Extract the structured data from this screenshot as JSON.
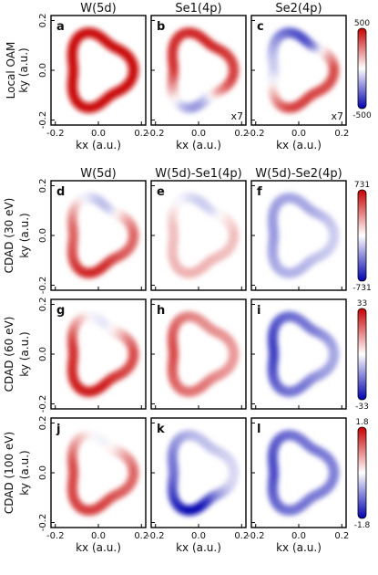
{
  "chart_data": {
    "type": "heatmap",
    "colormap": [
      "#0000b0",
      "#ffffff",
      "#c80000"
    ],
    "xticks": [
      "-0.2",
      "0.0",
      "0.2"
    ],
    "yticks": [
      "0.2",
      "0.0",
      "-0.2"
    ],
    "xlabel": "kx (a.u.)",
    "ylabel": "ky (a.u.)",
    "xlim": [
      -0.2,
      0.2
    ],
    "ylim": [
      -0.2,
      0.2
    ],
    "groups": [
      {
        "row_label": "Local OAM",
        "columns": [
          "W(5d)",
          "Se1(4p)",
          "Se2(4p)"
        ],
        "cbar_ticks": [
          "500",
          "-500"
        ],
        "panels": [
          {
            "letter": "a",
            "scale_label": "",
            "top": 0.95,
            "left": 0.95,
            "right": 0.95,
            "bottom": 0.95
          },
          {
            "letter": "b",
            "scale_label": "x7",
            "top": 0.85,
            "left": 0.8,
            "right": 0.75,
            "bottom": -0.4
          },
          {
            "letter": "c",
            "scale_label": "x7",
            "top": -0.7,
            "left": -0.2,
            "right": 0.7,
            "bottom": 0.75
          }
        ]
      },
      {
        "row_label": "CDAD (30 eV)",
        "columns": [
          "W(5d)",
          "W(5d)-Se1(4p)",
          "W(5d)-Se2(4p)"
        ],
        "cbar_ticks": [
          "731",
          "-731"
        ],
        "panels": [
          {
            "letter": "d",
            "scale_label": "",
            "top": -0.25,
            "left": 0.6,
            "right": 0.6,
            "bottom": 0.85
          },
          {
            "letter": "e",
            "scale_label": "",
            "top": -0.2,
            "left": 0.25,
            "right": 0.25,
            "bottom": 0.3
          },
          {
            "letter": "f",
            "scale_label": "",
            "top": -0.35,
            "left": -0.4,
            "right": -0.2,
            "bottom": -0.3
          }
        ]
      },
      {
        "row_label": "CDAD (60 eV)",
        "columns": [
          "",
          "",
          ""
        ],
        "cbar_ticks": [
          "33",
          "-33"
        ],
        "panels": [
          {
            "letter": "g",
            "scale_label": "",
            "top": -0.1,
            "left": 0.8,
            "right": 0.7,
            "bottom": 0.9
          },
          {
            "letter": "h",
            "scale_label": "",
            "top": 0.45,
            "left": 0.7,
            "right": 0.4,
            "bottom": 0.55
          },
          {
            "letter": "i",
            "scale_label": "",
            "top": -0.55,
            "left": -0.75,
            "right": -0.35,
            "bottom": -0.55
          }
        ]
      },
      {
        "row_label": "CDAD (100 eV)",
        "columns": [
          "",
          "",
          ""
        ],
        "cbar_ticks": [
          "1.8",
          "-1.8"
        ],
        "panels": [
          {
            "letter": "j",
            "scale_label": "",
            "top": -0.05,
            "left": 0.7,
            "right": 0.6,
            "bottom": 0.75
          },
          {
            "letter": "k",
            "scale_label": "",
            "top": -0.25,
            "left": -0.55,
            "right": -0.15,
            "bottom": -0.95
          },
          {
            "letter": "l",
            "scale_label": "",
            "top": -0.55,
            "left": -0.7,
            "right": -0.5,
            "bottom": -0.55
          }
        ]
      }
    ]
  }
}
